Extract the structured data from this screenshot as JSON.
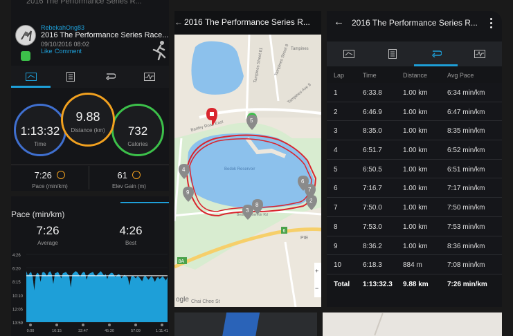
{
  "p1": {
    "top_title": "2016 The Performance Series R...",
    "user": "RebekahOng83",
    "title": "2016 The Performance Series Race...",
    "datetime": "09/10/2016 08:02",
    "like": "Like",
    "comment": "Comment",
    "time": {
      "value": "1:13:32",
      "label": "Time"
    },
    "distance": {
      "value": "9.88",
      "label": "Distance (km)"
    },
    "calories": {
      "value": "732",
      "label": "Calories"
    },
    "pace": {
      "value": "7:26",
      "label": "Pace (min/km)"
    },
    "elev": {
      "value": "61",
      "label": "Elev Gain (m)"
    }
  },
  "pace_panel": {
    "title": "Pace (min/km)",
    "avg": {
      "value": "7:26",
      "label": "Average"
    },
    "best": {
      "value": "4:26",
      "label": "Best"
    }
  },
  "chart_data": {
    "type": "area",
    "y_ticks": [
      "4:26",
      "6:20",
      "8:15",
      "10:10",
      "12:05",
      "13:59"
    ],
    "x_ticks": [
      "0:00",
      "16:15",
      "32:47",
      "45:30",
      "57:09",
      "1:11:41"
    ],
    "values_min_per_km": [
      6.8,
      7.4,
      7.1,
      6.9,
      7.6,
      9.5,
      7.3,
      7.0,
      7.2,
      8.3,
      7.0,
      6.9,
      7.1,
      7.5,
      7.0,
      6.8,
      7.2,
      8.6,
      7.1,
      7.0,
      6.9,
      7.3,
      7.8,
      7.1,
      7.0,
      6.9,
      7.2,
      7.4,
      9.1,
      7.2,
      7.0,
      6.8,
      6.9,
      7.2,
      7.6,
      7.1,
      6.9,
      7.0,
      8.0,
      7.3,
      7.1,
      7.0,
      6.9,
      7.3,
      7.5,
      7.2,
      7.0,
      6.8,
      7.1,
      7.4,
      7.2,
      7.9,
      7.3,
      7.1,
      7.0,
      7.2,
      7.6,
      7.4,
      7.2,
      7.3,
      7.8,
      7.5,
      7.3,
      7.5,
      7.7,
      8.8,
      7.6,
      7.4,
      7.6,
      7.8,
      7.5,
      7.6,
      7.9,
      8.2,
      7.6,
      7.4,
      7.7,
      8.0,
      7.7,
      7.5,
      7.8,
      8.3,
      7.8,
      7.6,
      7.9,
      7.7,
      7.5,
      7.8,
      8.1,
      7.6
    ],
    "average_line": "7:26"
  },
  "p2": {
    "title": "2016 The Performance Series R...",
    "labels": {
      "tampines": "Tampines",
      "tst8": "Tampines Street 8",
      "tave8": "Tampines Ave 8",
      "tst81": "Tampines Street 81",
      "bartley": "Bartley Road East",
      "bedok_res": "Bedok Reservoir",
      "bedok_road": "Bedok Reservoir Rd",
      "pie": "PIE",
      "chai": "Chai Chee St",
      "google": "ogle"
    },
    "markers": [
      "2",
      "3",
      "4",
      "5",
      "6",
      "7",
      "8",
      "9"
    ],
    "shields": {
      "s6": "6",
      "s8a": "8A"
    }
  },
  "p3": {
    "back": "←",
    "title": "2016 The Performance Series R...",
    "headers": [
      "Lap",
      "Time",
      "Distance",
      "Avg Pace"
    ],
    "laps": [
      [
        "1",
        "6:33.8",
        "1.00 km",
        "6:34 min/km"
      ],
      [
        "2",
        "6:46.9",
        "1.00 km",
        "6:47 min/km"
      ],
      [
        "3",
        "8:35.0",
        "1.00 km",
        "8:35 min/km"
      ],
      [
        "4",
        "6:51.7",
        "1.00 km",
        "6:52 min/km"
      ],
      [
        "5",
        "6:50.5",
        "1.00 km",
        "6:51 min/km"
      ],
      [
        "6",
        "7:16.7",
        "1.00 km",
        "7:17 min/km"
      ],
      [
        "7",
        "7:50.0",
        "1.00 km",
        "7:50 min/km"
      ],
      [
        "8",
        "7:53.0",
        "1.00 km",
        "7:53 min/km"
      ],
      [
        "9",
        "8:36.2",
        "1.00 km",
        "8:36 min/km"
      ],
      [
        "10",
        "6:18.3",
        "884 m",
        "7:08 min/km"
      ]
    ],
    "total": [
      "Total",
      "1:13:32.3",
      "9.88 km",
      "7:26 min/km"
    ]
  },
  "colors": {
    "accent": "#1e9fd8",
    "time": "#3f6fcf",
    "distance": "#f2a11f",
    "calories": "#3cc04a",
    "route": "#d9252e",
    "water": "#8cc1ec"
  }
}
